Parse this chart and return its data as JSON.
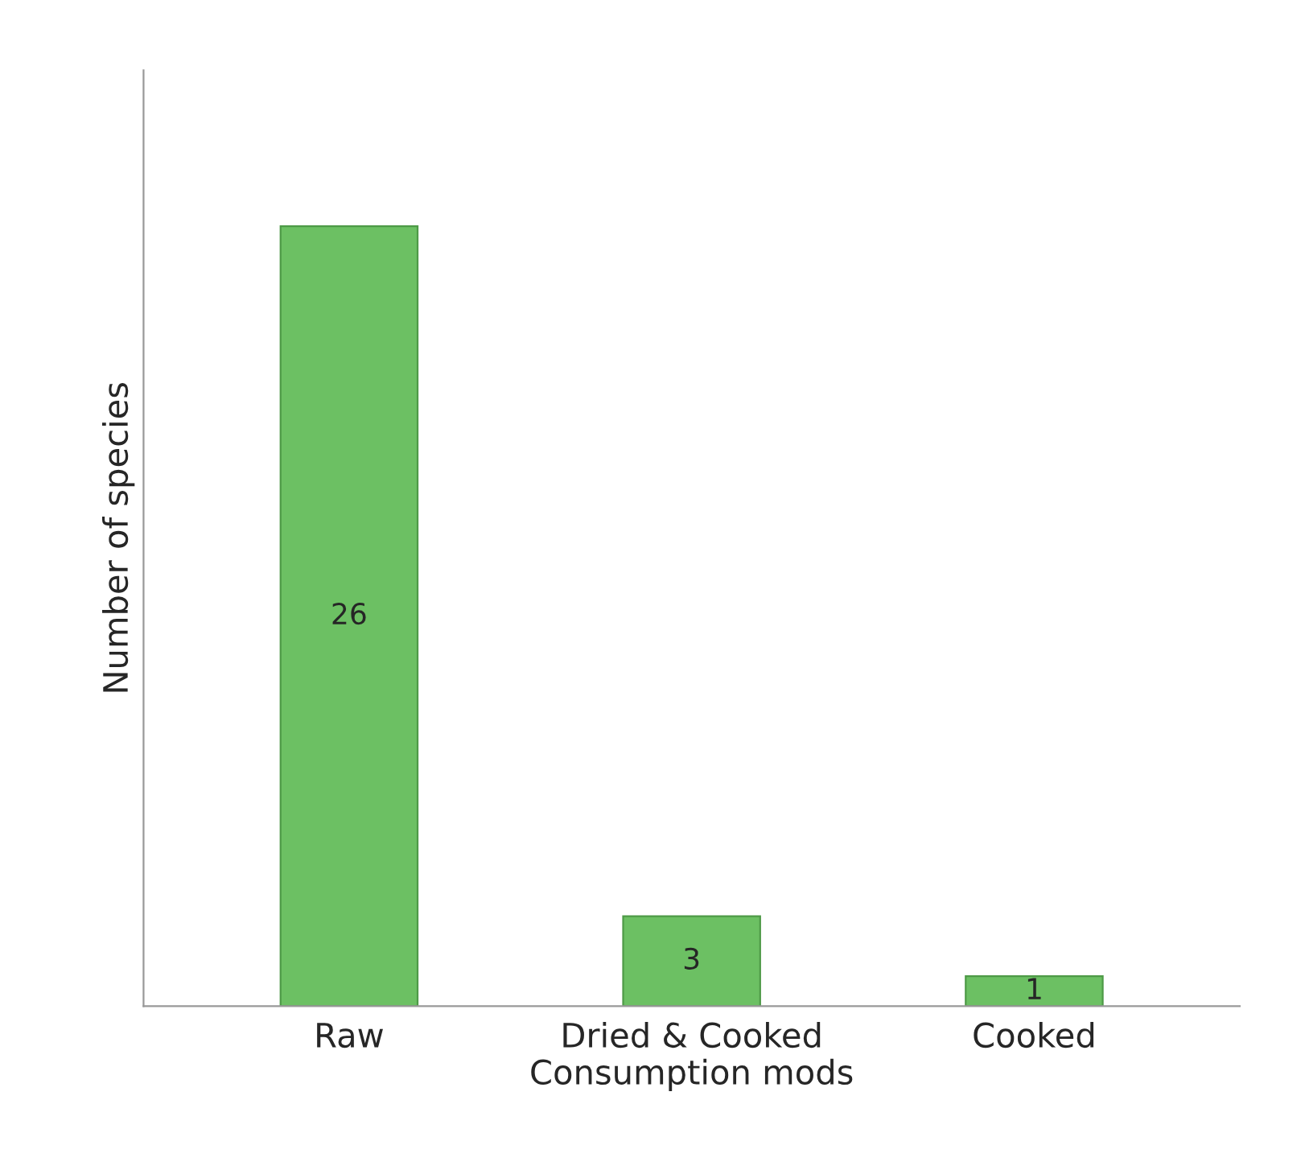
{
  "chart_data": {
    "type": "bar",
    "xlabel": "Consumption mods",
    "ylabel": "Number of species",
    "categories": [
      "Raw",
      "Dried & Cooked",
      "Cooked"
    ],
    "values": [
      26,
      3,
      1
    ],
    "color": "#6cc063",
    "data_labels": true,
    "grid": false,
    "tick_labels": "x"
  }
}
